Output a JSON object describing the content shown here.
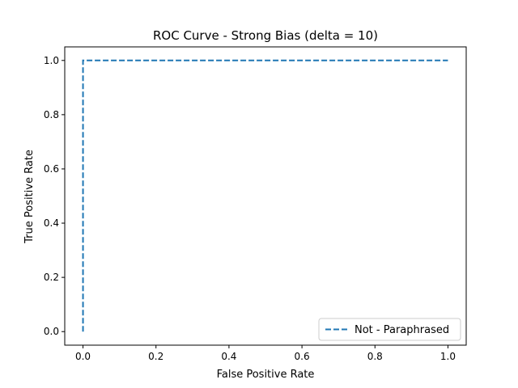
{
  "chart_data": {
    "type": "line",
    "title": "ROC Curve - Strong Bias (delta = 10)",
    "xlabel": "False Positive Rate",
    "ylabel": "True Positive Rate",
    "xlim": [
      -0.05,
      1.05
    ],
    "ylim": [
      -0.05,
      1.05
    ],
    "xticks": [
      0.0,
      0.2,
      0.4,
      0.6,
      0.8,
      1.0
    ],
    "yticks": [
      0.0,
      0.2,
      0.4,
      0.6,
      0.8,
      1.0
    ],
    "xtick_labels": [
      "0.0",
      "0.2",
      "0.4",
      "0.6",
      "0.8",
      "1.0"
    ],
    "ytick_labels": [
      "0.0",
      "0.2",
      "0.4",
      "0.6",
      "0.8",
      "1.0"
    ],
    "grid": false,
    "legend_position": "lower-right",
    "series": [
      {
        "name": "Not - Paraphrased",
        "color": "#1f77b4",
        "line_style": "dashed",
        "x": [
          0.0,
          0.0,
          1.0
        ],
        "y": [
          0.0,
          1.0,
          1.0
        ]
      }
    ]
  }
}
